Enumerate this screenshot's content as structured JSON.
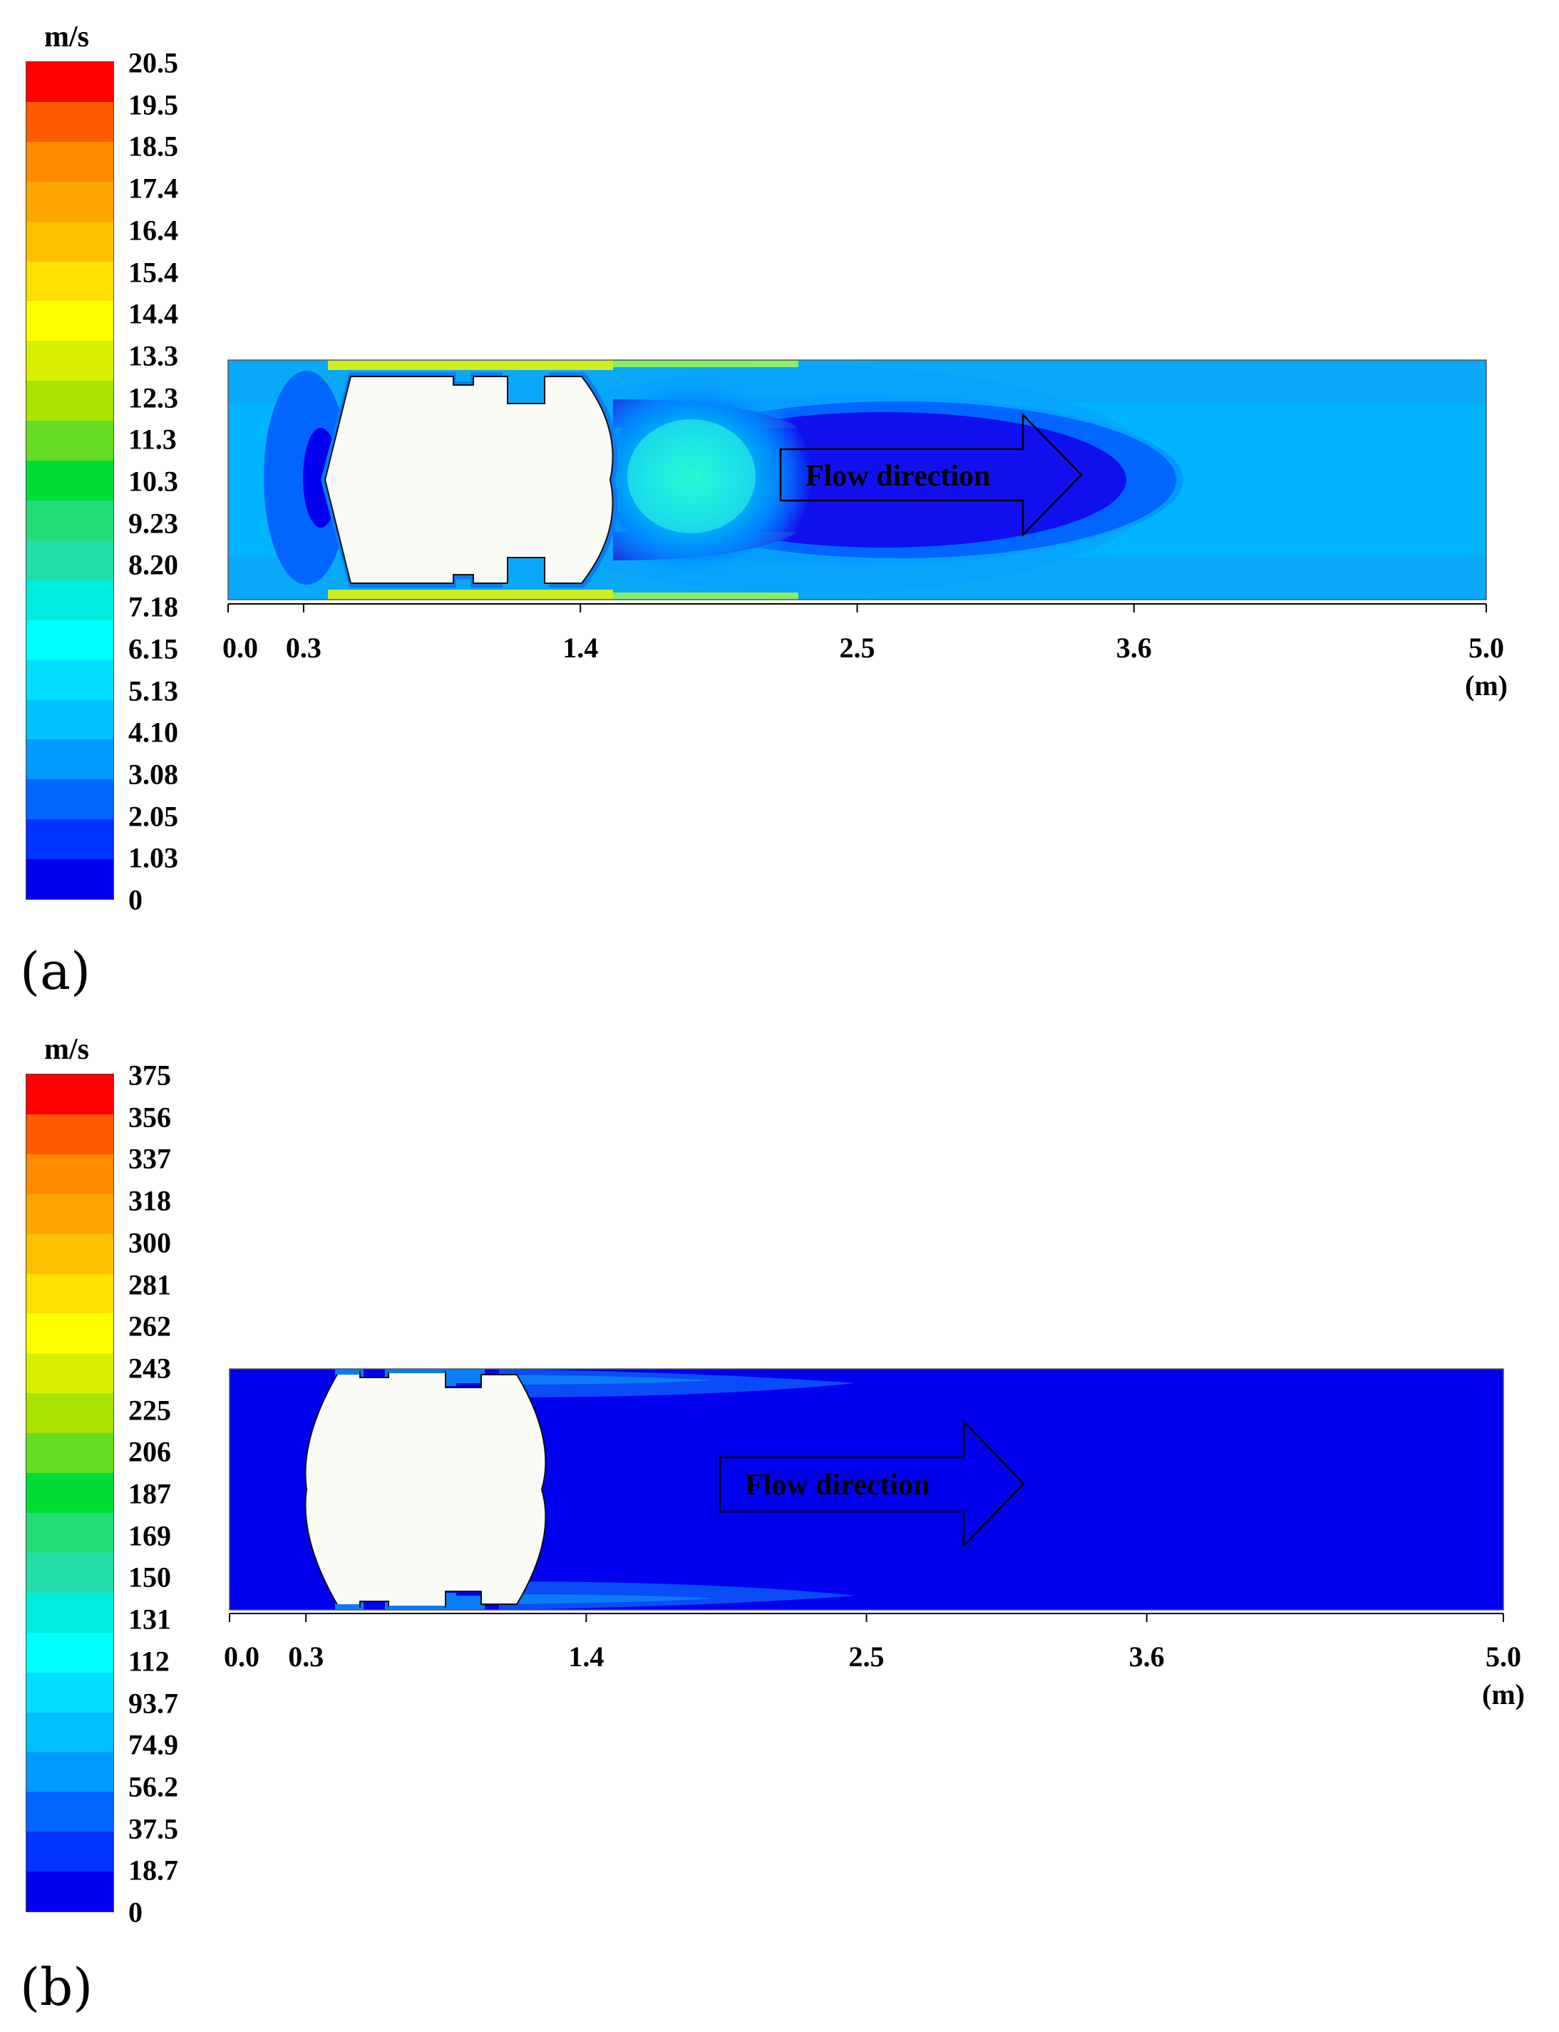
{
  "panels": [
    {
      "tag": "(a)",
      "unit": "m/s",
      "legend_levels": [
        "20.5",
        "19.5",
        "18.5",
        "17.4",
        "16.4",
        "15.4",
        "14.4",
        "13.3",
        "12.3",
        "11.3",
        "10.3",
        "9.23",
        "8.20",
        "7.18",
        "6.15",
        "5.13",
        "4.10",
        "3.08",
        "2.05",
        "1.03",
        "0"
      ],
      "axis_ticks": [
        {
          "label": "0.0",
          "value": 0.0
        },
        {
          "label": "0.3",
          "value": 0.3
        },
        {
          "label": "1.4",
          "value": 1.4
        },
        {
          "label": "2.5",
          "value": 2.5
        },
        {
          "label": "3.6",
          "value": 3.6
        },
        {
          "label": "5.0",
          "value": 5.0
        }
      ],
      "axis_unit": "(m)",
      "flow_label": "Flow direction"
    },
    {
      "tag": "(b)",
      "unit": "m/s",
      "legend_levels": [
        "375",
        "356",
        "337",
        "318",
        "300",
        "281",
        "262",
        "243",
        "225",
        "206",
        "187",
        "169",
        "150",
        "131",
        "112",
        "93.7",
        "74.9",
        "56.2",
        "37.5",
        "18.7",
        "0"
      ],
      "axis_ticks": [
        {
          "label": "0.0",
          "value": 0.0
        },
        {
          "label": "0.3",
          "value": 0.3
        },
        {
          "label": "1.4",
          "value": 1.4
        },
        {
          "label": "2.5",
          "value": 2.5
        },
        {
          "label": "3.6",
          "value": 3.6
        },
        {
          "label": "5.0",
          "value": 5.0
        }
      ],
      "axis_unit": "(m)",
      "flow_label": "Flow direction"
    }
  ],
  "colormap": [
    "#ff0000",
    "#ff5a00",
    "#ff8c00",
    "#ffa500",
    "#ffc000",
    "#ffe000",
    "#ffff00",
    "#d8f000",
    "#a8e400",
    "#66dd22",
    "#00dd33",
    "#22dd77",
    "#22ddaa",
    "#00eedd",
    "#00ffff",
    "#00ddff",
    "#00c0ff",
    "#0099ff",
    "#0066ff",
    "#0033ff",
    "#0000ee"
  ]
}
